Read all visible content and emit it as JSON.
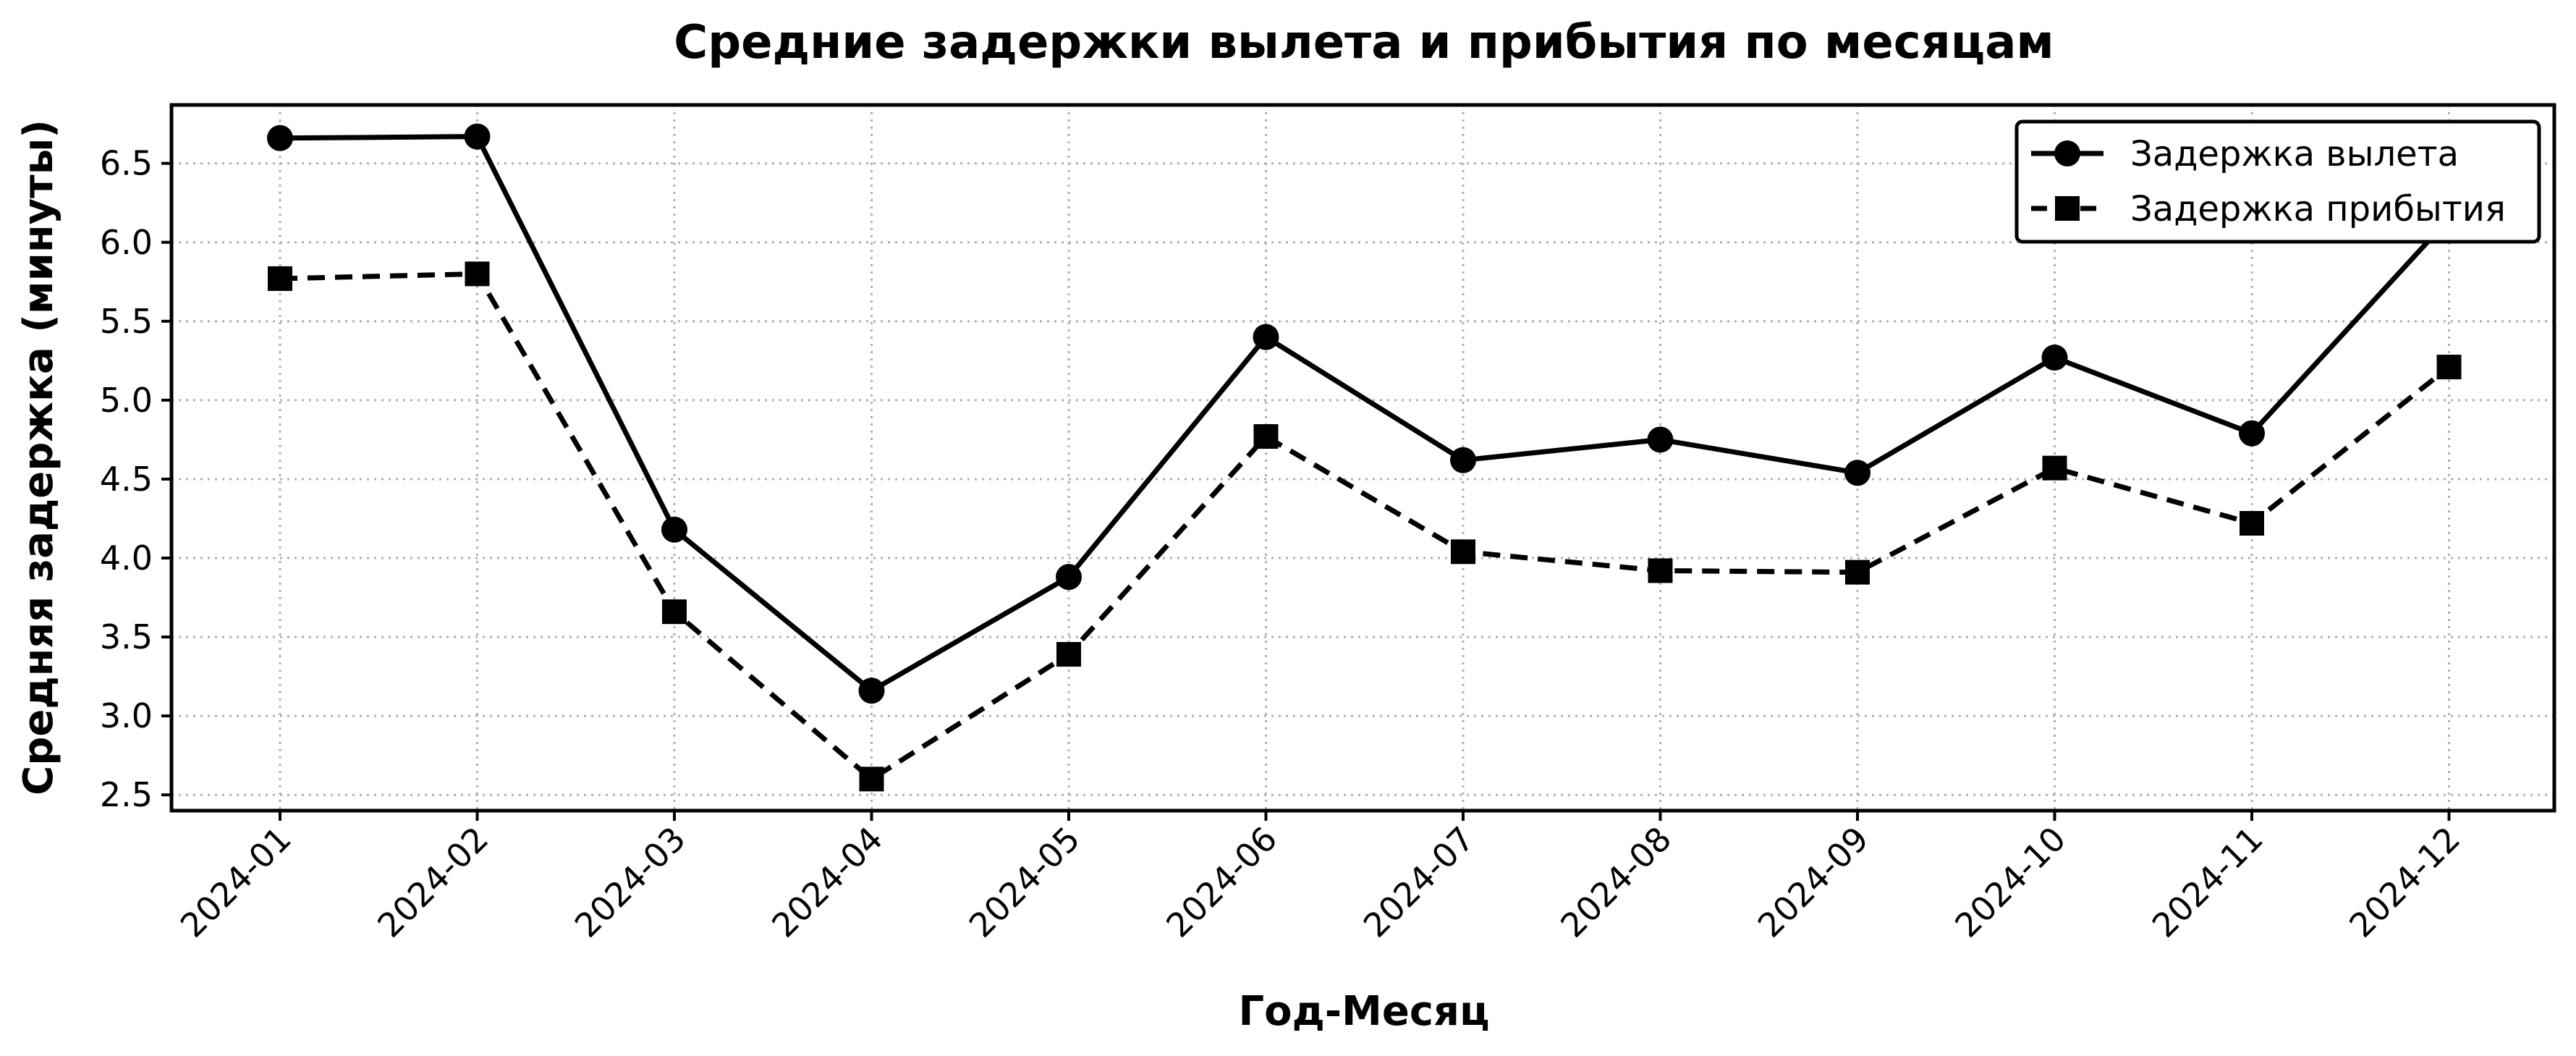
{
  "chart_data": {
    "type": "line",
    "title": "Средние задержки вылета и прибытия по месяцам",
    "xlabel": "Год-Месяц",
    "ylabel": "Средняя задержка (минуты)",
    "categories": [
      "2024-01",
      "2024-02",
      "2024-03",
      "2024-04",
      "2024-05",
      "2024-06",
      "2024-07",
      "2024-08",
      "2024-09",
      "2024-10",
      "2024-11",
      "2024-12"
    ],
    "series": [
      {
        "name": "Задержка вылета",
        "marker": "circle",
        "line_style": "solid",
        "color": "#000000",
        "values": [
          6.66,
          6.67,
          4.18,
          3.16,
          3.88,
          5.4,
          4.62,
          4.75,
          4.54,
          5.27,
          4.79,
          6.15
        ]
      },
      {
        "name": "Задержка прибытия",
        "marker": "square",
        "line_style": "dashed",
        "color": "#000000",
        "values": [
          5.77,
          5.8,
          3.66,
          2.6,
          3.39,
          4.77,
          4.04,
          3.92,
          3.91,
          4.57,
          4.22,
          5.21
        ]
      }
    ],
    "ylim": [
      2.4,
      6.87
    ],
    "yticks": [
      "2.5",
      "3.0",
      "3.5",
      "4.0",
      "4.5",
      "5.0",
      "5.5",
      "6.0",
      "6.5"
    ],
    "grid": true,
    "legend_position": "top-right"
  }
}
